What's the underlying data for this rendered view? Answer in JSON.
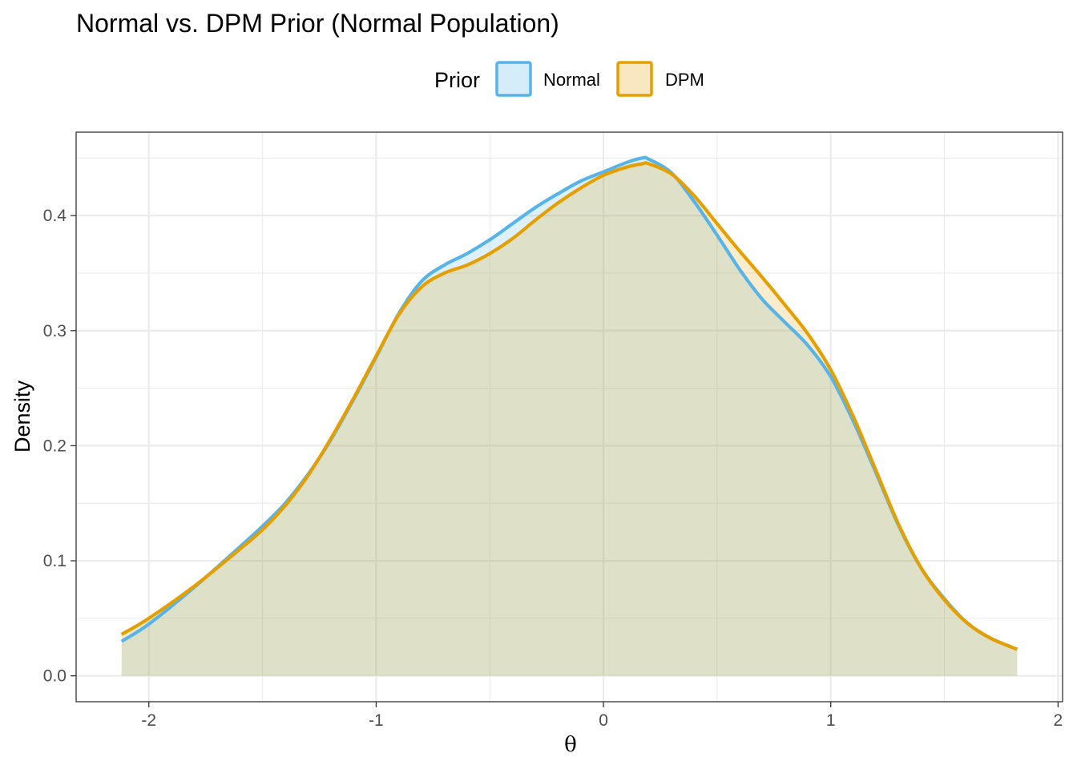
{
  "chart_data": {
    "type": "area",
    "title": "Normal vs. DPM Prior (Normal Population)",
    "xlabel": "θ",
    "ylabel": "Density",
    "xlim": [
      -2.32,
      2.02
    ],
    "ylim": [
      -0.0225,
      0.4725
    ],
    "x_ticks": [
      -2,
      -1,
      0,
      1,
      2
    ],
    "x_tick_labels": [
      "-2",
      "-1",
      "0",
      "1",
      "2"
    ],
    "y_ticks": [
      0.0,
      0.1,
      0.2,
      0.3,
      0.4
    ],
    "y_tick_labels": [
      "0.0",
      "0.1",
      "0.2",
      "0.3",
      "0.4"
    ],
    "grid": true,
    "legend": {
      "title": "Prior",
      "position": "top",
      "entries": [
        "Normal",
        "DPM"
      ]
    },
    "series": [
      {
        "name": "Normal",
        "color": "#56B4E9",
        "x": [
          -2.12,
          -2.0,
          -1.8,
          -1.6,
          -1.5,
          -1.4,
          -1.3,
          -1.2,
          -1.1,
          -1.0,
          -0.9,
          -0.8,
          -0.7,
          -0.6,
          -0.5,
          -0.4,
          -0.3,
          -0.2,
          -0.1,
          0.0,
          0.1,
          0.17,
          0.2,
          0.3,
          0.4,
          0.5,
          0.6,
          0.7,
          0.8,
          0.9,
          1.0,
          1.1,
          1.2,
          1.3,
          1.4,
          1.5,
          1.6,
          1.7,
          1.82
        ],
        "y": [
          0.03,
          0.045,
          0.077,
          0.112,
          0.13,
          0.15,
          0.175,
          0.205,
          0.24,
          0.277,
          0.315,
          0.343,
          0.357,
          0.367,
          0.379,
          0.393,
          0.407,
          0.419,
          0.43,
          0.438,
          0.446,
          0.45,
          0.449,
          0.437,
          0.412,
          0.383,
          0.353,
          0.327,
          0.307,
          0.287,
          0.26,
          0.221,
          0.176,
          0.13,
          0.093,
          0.067,
          0.046,
          0.033,
          0.023
        ]
      },
      {
        "name": "DPM",
        "color": "#E69F00",
        "x": [
          -2.12,
          -2.0,
          -1.8,
          -1.6,
          -1.5,
          -1.4,
          -1.3,
          -1.2,
          -1.1,
          -1.0,
          -0.9,
          -0.8,
          -0.7,
          -0.6,
          -0.5,
          -0.4,
          -0.3,
          -0.2,
          -0.1,
          0.0,
          0.1,
          0.17,
          0.2,
          0.3,
          0.4,
          0.5,
          0.6,
          0.7,
          0.8,
          0.9,
          1.0,
          1.1,
          1.2,
          1.3,
          1.4,
          1.5,
          1.6,
          1.7,
          1.82
        ],
        "y": [
          0.036,
          0.05,
          0.078,
          0.11,
          0.127,
          0.148,
          0.174,
          0.206,
          0.241,
          0.278,
          0.314,
          0.338,
          0.35,
          0.357,
          0.367,
          0.38,
          0.396,
          0.411,
          0.424,
          0.435,
          0.442,
          0.445,
          0.445,
          0.436,
          0.417,
          0.393,
          0.369,
          0.346,
          0.322,
          0.297,
          0.266,
          0.225,
          0.178,
          0.131,
          0.093,
          0.066,
          0.046,
          0.033,
          0.023
        ]
      }
    ]
  }
}
